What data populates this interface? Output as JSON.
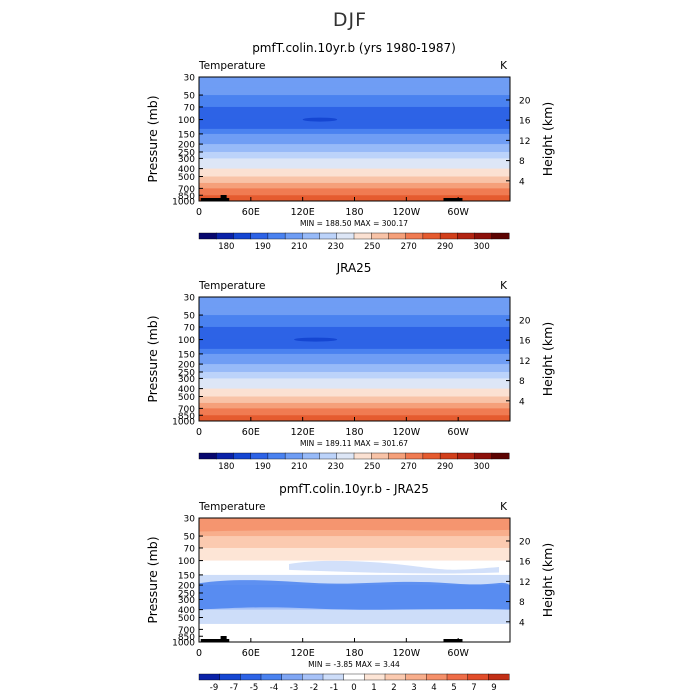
{
  "page": {
    "title": "DJF"
  },
  "colors": {
    "full_levels_palette": [
      "#08086e",
      "#0a22a8",
      "#1546d2",
      "#2d63e6",
      "#4a82f0",
      "#6f9df4",
      "#97baf8",
      "#bcd3fa",
      "#dde6f6",
      "#fbe1d2",
      "#f8c3a7",
      "#f5a07a",
      "#f07b52",
      "#e55b2f",
      "#d2401c",
      "#b22412",
      "#8c100a",
      "#5c0402"
    ],
    "diff_palette": [
      "#0a22a8",
      "#1546d2",
      "#2d63e6",
      "#4a82f0",
      "#7fa6f4",
      "#a7c2f8",
      "#cdddf9",
      "#ffffff",
      "#fde5d6",
      "#fbcab0",
      "#f8ae8c",
      "#f5906a",
      "#ef6d48",
      "#e24d2a",
      "#c22f16"
    ]
  },
  "chart_data": [
    {
      "type": "heatmap",
      "title": "pmfT.colin.10yr.b (yrs 1980-1987)",
      "left_label": "Temperature",
      "right_label": "K",
      "xlabel": "",
      "ylabel": "Pressure (mb)",
      "y2label": "Height (km)",
      "x_ticks": [
        "0",
        "60E",
        "120E",
        "180",
        "120W",
        "60W"
      ],
      "x_tick_lon": [
        0,
        60,
        120,
        180,
        240,
        300
      ],
      "xlim": [
        0,
        360
      ],
      "y_scale": "log",
      "ylim": [
        1000,
        30
      ],
      "y_ticks": [
        "30",
        "50",
        "70",
        "100",
        "150",
        "200",
        "250",
        "300",
        "400",
        "500",
        "700",
        "850",
        "1000"
      ],
      "y_tick_values": [
        30,
        50,
        70,
        100,
        150,
        200,
        250,
        300,
        400,
        500,
        700,
        850,
        1000
      ],
      "y2_ticks": [
        "4",
        "8",
        "12",
        "16",
        "20"
      ],
      "y2_tick_values": [
        4,
        8,
        12,
        16,
        20
      ],
      "stats": "MIN = 188.50   MAX = 300.17",
      "colorbar_labels": [
        "180",
        "190",
        "210",
        "230",
        "250",
        "270",
        "290",
        "300"
      ],
      "colorbar_levels": [
        180,
        185,
        190,
        200,
        210,
        220,
        230,
        240,
        250,
        260,
        270,
        280,
        290,
        295,
        300
      ],
      "palette": "full",
      "levels": [
        {
          "p": 30,
          "value": 215
        },
        {
          "p": 40,
          "value": 213
        },
        {
          "p": 50,
          "value": 207
        },
        {
          "p": 70,
          "value": 200
        },
        {
          "p": 100,
          "value": 195
        },
        {
          "p": 130,
          "value": 200
        },
        {
          "p": 150,
          "value": 207
        },
        {
          "p": 200,
          "value": 218
        },
        {
          "p": 250,
          "value": 227
        },
        {
          "p": 300,
          "value": 236
        },
        {
          "p": 400,
          "value": 250
        },
        {
          "p": 500,
          "value": 262
        },
        {
          "p": 600,
          "value": 272
        },
        {
          "p": 700,
          "value": 280
        },
        {
          "p": 850,
          "value": 289
        },
        {
          "p": 1000,
          "value": 298
        }
      ],
      "min_patch": {
        "lon_start": 120,
        "lon_end": 160,
        "p": 100
      },
      "topography": true
    },
    {
      "type": "heatmap",
      "title": "JRA25",
      "left_label": "Temperature",
      "right_label": "K",
      "xlabel": "",
      "ylabel": "Pressure (mb)",
      "y2label": "Height (km)",
      "x_ticks": [
        "0",
        "60E",
        "120E",
        "180",
        "120W",
        "60W"
      ],
      "x_tick_lon": [
        0,
        60,
        120,
        180,
        240,
        300
      ],
      "xlim": [
        0,
        360
      ],
      "y_scale": "log",
      "ylim": [
        1000,
        30
      ],
      "y_ticks": [
        "30",
        "50",
        "70",
        "100",
        "150",
        "200",
        "250",
        "300",
        "400",
        "500",
        "700",
        "850",
        "1000"
      ],
      "y_tick_values": [
        30,
        50,
        70,
        100,
        150,
        200,
        250,
        300,
        400,
        500,
        700,
        850,
        1000
      ],
      "y2_ticks": [
        "4",
        "8",
        "12",
        "16",
        "20"
      ],
      "y2_tick_values": [
        4,
        8,
        12,
        16,
        20
      ],
      "stats": "MIN = 189.11   MAX = 301.67",
      "colorbar_labels": [
        "180",
        "190",
        "210",
        "230",
        "250",
        "270",
        "290",
        "300"
      ],
      "colorbar_levels": [
        180,
        185,
        190,
        200,
        210,
        220,
        230,
        240,
        250,
        260,
        270,
        280,
        290,
        295,
        300
      ],
      "palette": "full",
      "levels": [
        {
          "p": 30,
          "value": 217
        },
        {
          "p": 40,
          "value": 213
        },
        {
          "p": 50,
          "value": 207
        },
        {
          "p": 70,
          "value": 200
        },
        {
          "p": 100,
          "value": 195
        },
        {
          "p": 130,
          "value": 199
        },
        {
          "p": 150,
          "value": 206
        },
        {
          "p": 200,
          "value": 217
        },
        {
          "p": 250,
          "value": 226
        },
        {
          "p": 300,
          "value": 235
        },
        {
          "p": 400,
          "value": 249
        },
        {
          "p": 500,
          "value": 261
        },
        {
          "p": 600,
          "value": 271
        },
        {
          "p": 700,
          "value": 279
        },
        {
          "p": 850,
          "value": 289
        },
        {
          "p": 1000,
          "value": 299
        }
      ],
      "min_patch": {
        "lon_start": 110,
        "lon_end": 160,
        "p": 100
      },
      "topography": false
    },
    {
      "type": "heatmap",
      "title": "pmfT.colin.10yr.b - JRA25",
      "left_label": "Temperature",
      "right_label": "K",
      "xlabel": "",
      "ylabel": "Pressure (mb)",
      "y2label": "Height (km)",
      "x_ticks": [
        "0",
        "60E",
        "120E",
        "180",
        "120W",
        "60W"
      ],
      "x_tick_lon": [
        0,
        60,
        120,
        180,
        240,
        300
      ],
      "xlim": [
        0,
        360
      ],
      "y_scale": "log",
      "ylim": [
        1000,
        30
      ],
      "y_ticks": [
        "30",
        "50",
        "70",
        "100",
        "150",
        "200",
        "250",
        "300",
        "400",
        "500",
        "700",
        "850",
        "1000"
      ],
      "y_tick_values": [
        30,
        50,
        70,
        100,
        150,
        200,
        250,
        300,
        400,
        500,
        700,
        850,
        1000
      ],
      "y2_ticks": [
        "4",
        "8",
        "12",
        "16",
        "20"
      ],
      "y2_tick_values": [
        4,
        8,
        12,
        16,
        20
      ],
      "stats": "MIN =   -3.85   MAX =    3.44",
      "colorbar_labels": [
        "-9",
        "-7",
        "-5",
        "-4",
        "-3",
        "-2",
        "-1",
        "0",
        "1",
        "2",
        "3",
        "4",
        "5",
        "7",
        "9"
      ],
      "colorbar_levels": [
        -9,
        -7,
        -5,
        -4,
        -3,
        -2,
        -1,
        0,
        1,
        2,
        3,
        4,
        5,
        7,
        9
      ],
      "palette": "diff",
      "levels": [
        {
          "p": 30,
          "value": 3.2
        },
        {
          "p": 40,
          "value": 2.5
        },
        {
          "p": 50,
          "value": 1.5
        },
        {
          "p": 70,
          "value": 0.8
        },
        {
          "p": 100,
          "value": 0.3
        },
        {
          "p": 130,
          "value": -0.6
        },
        {
          "p": 150,
          "value": -1.2
        },
        {
          "p": 200,
          "value": -2.2
        },
        {
          "p": 250,
          "value": -2.6
        },
        {
          "p": 300,
          "value": -2.5
        },
        {
          "p": 400,
          "value": -1.6
        },
        {
          "p": 500,
          "value": -1.3
        },
        {
          "p": 600,
          "value": -1.1
        },
        {
          "p": 700,
          "value": -0.6
        },
        {
          "p": 850,
          "value": -0.3
        },
        {
          "p": 1000,
          "value": -0.5
        }
      ],
      "topography": true
    }
  ]
}
